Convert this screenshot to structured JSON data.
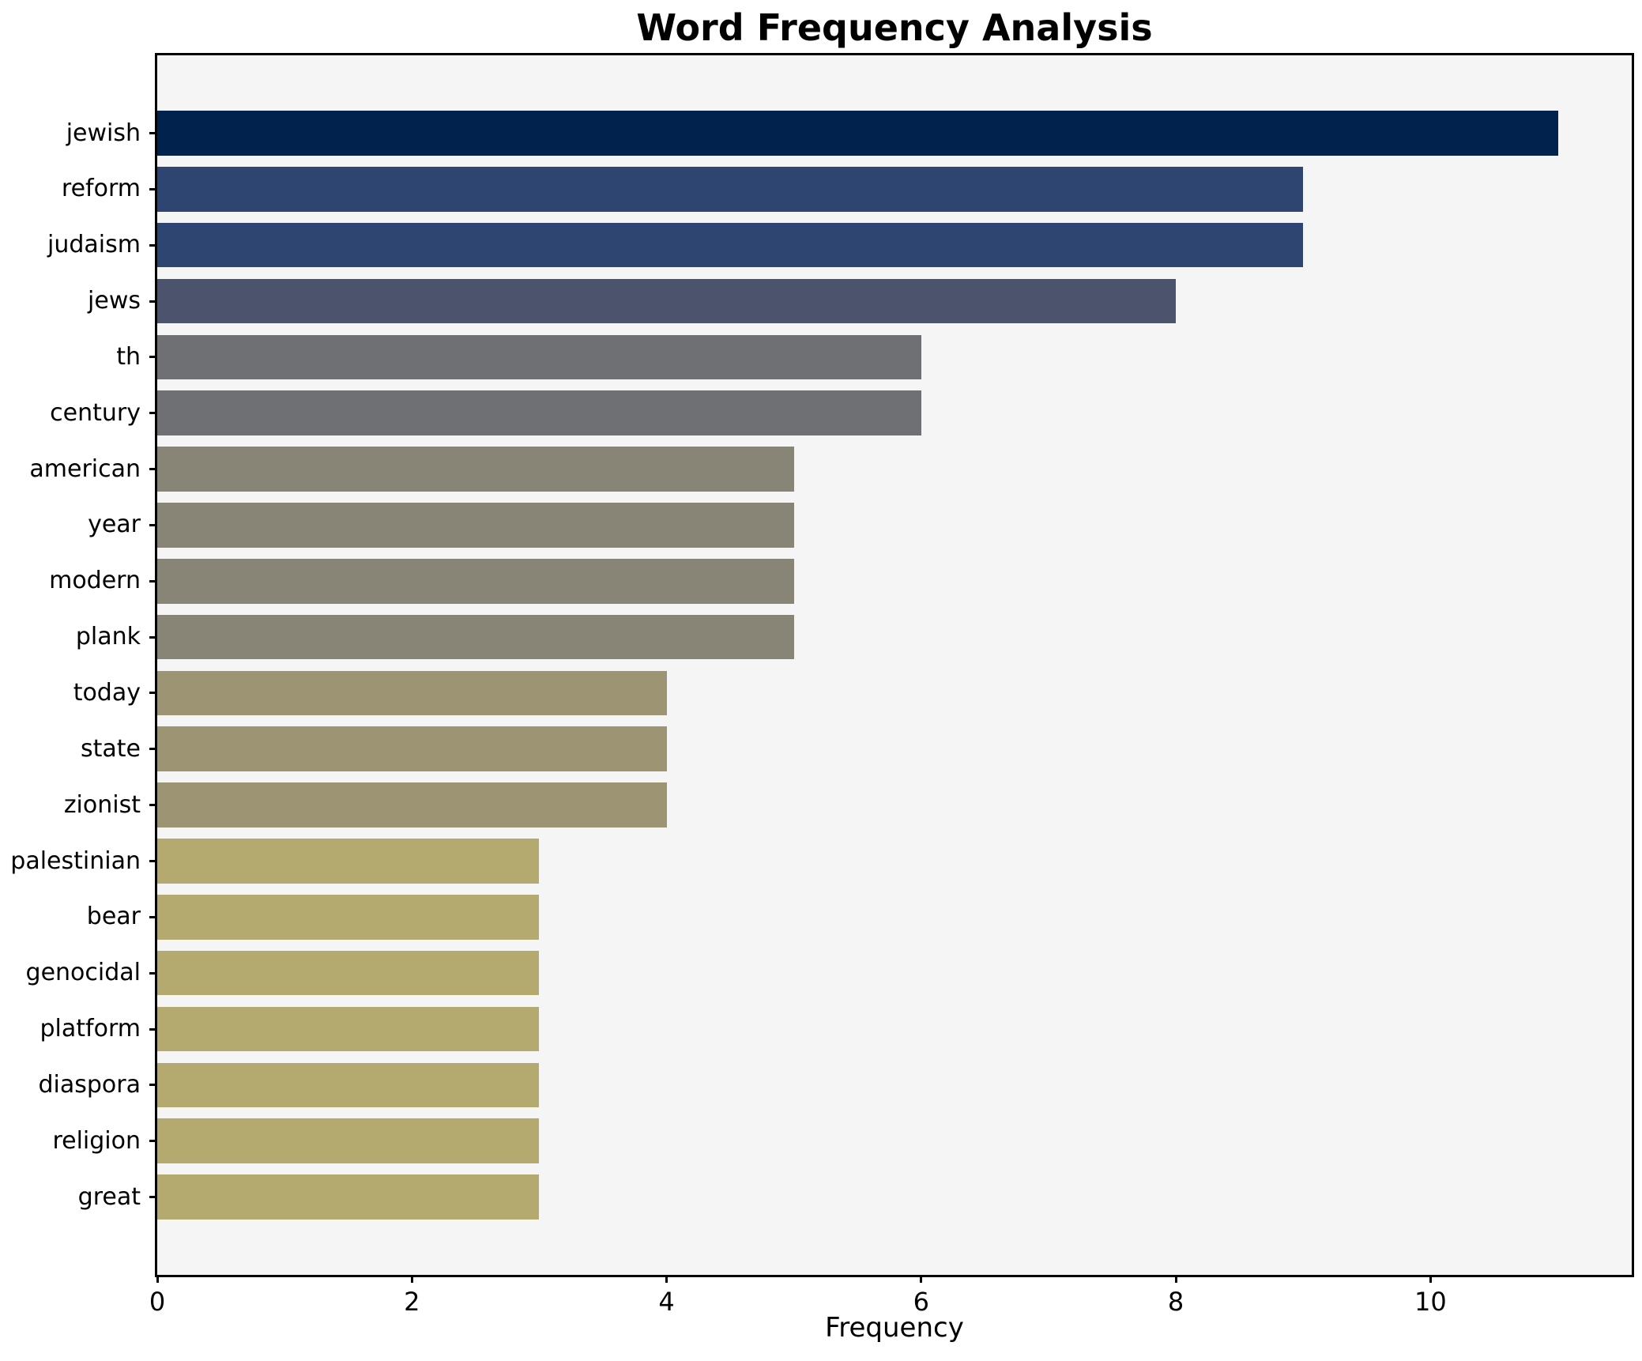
{
  "figure": {
    "title": "Word Frequency Analysis",
    "xlabel": "Frequency"
  },
  "chart_data": {
    "type": "bar",
    "orientation": "horizontal",
    "title": "Word Frequency Analysis",
    "xlabel": "Frequency",
    "ylabel": "",
    "categories": [
      "jewish",
      "reform",
      "judaism",
      "jews",
      "th",
      "century",
      "american",
      "year",
      "modern",
      "plank",
      "today",
      "state",
      "zionist",
      "palestinian",
      "bear",
      "genocidal",
      "platform",
      "diaspora",
      "religion",
      "great"
    ],
    "values": [
      11,
      9,
      9,
      8,
      6,
      6,
      5,
      5,
      5,
      5,
      4,
      4,
      4,
      3,
      3,
      3,
      3,
      3,
      3,
      3
    ],
    "bar_colors": [
      "#00224d",
      "#2f4571",
      "#2f4571",
      "#4b546c",
      "#6e7073",
      "#6e7073",
      "#888576",
      "#888576",
      "#888576",
      "#888576",
      "#9d9473",
      "#9d9473",
      "#9d9473",
      "#b4a96e",
      "#b4a96e",
      "#b4a96e",
      "#b4a96e",
      "#b4a96e",
      "#b4a96e",
      "#b4a96e"
    ],
    "xlim": [
      0,
      11.58
    ],
    "xticks": [
      0,
      2,
      4,
      6,
      8,
      10
    ],
    "grid": false,
    "legend": null,
    "colormap": "cividis",
    "plot_background": "#f5f5f6",
    "figure_background": "#ffffff",
    "spine_color": "#000000"
  }
}
